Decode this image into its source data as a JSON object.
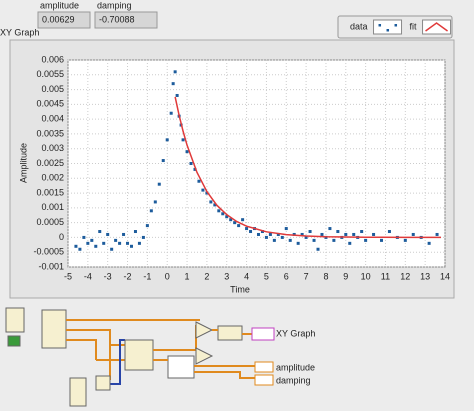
{
  "panel": {
    "amplitude_label": "amplitude",
    "amplitude_value": "0.00629",
    "damping_label": "damping",
    "damping_value": "-0.70088"
  },
  "diagram": {
    "xy_graph": "XY Graph",
    "amplitude": "amplitude",
    "damping": "damping"
  },
  "chart_data": {
    "type": "scatter",
    "title": "XY Graph",
    "xlabel": "Time",
    "ylabel": "Amplitude",
    "xlim": [
      -5,
      14
    ],
    "ylim": [
      -0.001,
      0.006
    ],
    "xticks": [
      -5,
      -4,
      -3,
      -2,
      -1,
      0,
      1,
      2,
      3,
      4,
      5,
      6,
      7,
      8,
      9,
      10,
      11,
      12,
      13,
      14
    ],
    "yticks": [
      -0.001,
      -0.0005,
      0,
      0.0005,
      0.001,
      0.0015,
      0.002,
      0.0025,
      0.003,
      0.0035,
      0.004,
      0.0045,
      0.005,
      0.0055,
      0.006
    ],
    "grid": true,
    "legend": "top-right",
    "series": [
      {
        "name": "data",
        "color": "#1d5c9c",
        "style": "points",
        "x": [
          -4.6,
          -4.4,
          -4.2,
          -4,
          -3.8,
          -3.6,
          -3.4,
          -3.2,
          -3,
          -2.8,
          -2.6,
          -2.4,
          -2.2,
          -2,
          -1.8,
          -1.6,
          -1.4,
          -1.2,
          -1,
          -0.8,
          -0.6,
          -0.4,
          -0.2,
          0,
          0.2,
          0.3,
          0.4,
          0.5,
          0.6,
          0.7,
          0.8,
          1,
          1.2,
          1.4,
          1.6,
          1.8,
          2,
          2.2,
          2.4,
          2.6,
          2.8,
          3,
          3.2,
          3.4,
          3.6,
          3.8,
          4,
          4.2,
          4.4,
          4.6,
          4.8,
          5,
          5.2,
          5.4,
          5.6,
          5.8,
          6,
          6.2,
          6.4,
          6.6,
          6.8,
          7,
          7.2,
          7.4,
          7.6,
          7.8,
          8,
          8.2,
          8.4,
          8.6,
          8.8,
          9,
          9.2,
          9.4,
          9.6,
          9.8,
          10,
          10.4,
          10.8,
          11.2,
          11.6,
          12,
          12.4,
          12.8,
          13.2,
          13.6
        ],
        "values": [
          -0.0003,
          -0.0004,
          0,
          -0.0002,
          -0.0001,
          -0.0003,
          0.0002,
          -0.0002,
          0.0001,
          -0.0004,
          -0.0001,
          -0.0002,
          0.0001,
          -0.0002,
          -0.0003,
          0.0002,
          -0.0002,
          0,
          0.0004,
          0.0009,
          0.0012,
          0.0018,
          0.0026,
          0.0033,
          0.0042,
          0.0052,
          0.0056,
          0.0048,
          0.0041,
          0.0038,
          0.0033,
          0.0029,
          0.0025,
          0.0023,
          0.0019,
          0.0016,
          0.0015,
          0.0012,
          0.0011,
          0.0009,
          0.0008,
          0.0007,
          0.0006,
          0.0005,
          0.0004,
          0.0006,
          0.0003,
          0.0002,
          0.0003,
          0.0001,
          0.0002,
          0,
          0.0001,
          -0.0001,
          0.0001,
          0,
          0.0003,
          -0.0001,
          0.0001,
          -0.0002,
          0.0001,
          0,
          0.0002,
          -0.0001,
          -0.0004,
          0.0001,
          0,
          0.0003,
          -0.0001,
          0.0002,
          0,
          0.0001,
          -0.0002,
          0.0001,
          0,
          0.0002,
          -0.0001,
          0.0001,
          -0.0001,
          0.0002,
          0,
          -0.0001,
          0.0001,
          0,
          -0.0002,
          0.0001
        ]
      },
      {
        "name": "fit",
        "color": "#e03a3a",
        "style": "line",
        "x": [
          0.4,
          0.6,
          0.8,
          1,
          1.5,
          2,
          2.5,
          3,
          3.5,
          4,
          5,
          6,
          7,
          8,
          10,
          12,
          13.8
        ],
        "values": [
          0.00475,
          0.00413,
          0.00359,
          0.00312,
          0.0022,
          0.00155,
          0.00109,
          0.00077,
          0.00054,
          0.00038,
          0.00019,
          9.4e-05,
          4.7e-05,
          2.3e-05,
          5.7e-06,
          1.4e-06,
          4e-07
        ]
      }
    ]
  }
}
